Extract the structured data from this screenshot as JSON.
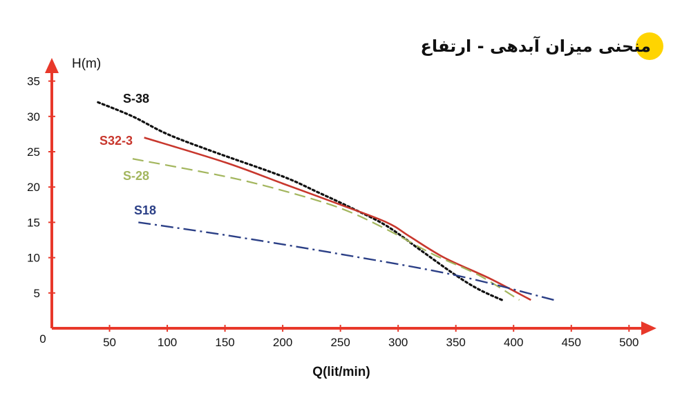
{
  "title": "منحنی میزان آبدهی - ارتفاع",
  "colors": {
    "axis": "#e8382a",
    "title_badge": "#ffd400"
  },
  "chart_data": {
    "type": "line",
    "title": "منحنی میزان آبدهی - ارتفاع",
    "xlabel": "Q(lit/min)",
    "ylabel": "H(m)",
    "xlim": [
      0,
      500
    ],
    "ylim": [
      0,
      35
    ],
    "origin_label": "0",
    "xticks": [
      50,
      100,
      150,
      200,
      250,
      300,
      350,
      400,
      450,
      500
    ],
    "yticks": [
      5,
      10,
      15,
      20,
      25,
      30,
      35
    ],
    "grid": false,
    "series": [
      {
        "name": "S-38",
        "color": "#111111",
        "dash": "dotted",
        "x": [
          40,
          70,
          100,
          140,
          200,
          230,
          260,
          290,
          320,
          350,
          370,
          390
        ],
        "y": [
          32,
          30,
          27.5,
          25,
          21.5,
          19.3,
          17,
          14.5,
          11,
          7.5,
          5.5,
          4
        ]
      },
      {
        "name": "S32-3",
        "color": "#c8372d",
        "dash": "solid",
        "x": [
          80,
          150,
          200,
          250,
          290,
          310,
          340,
          380,
          415
        ],
        "y": [
          27,
          23.5,
          20.5,
          17.5,
          15,
          13,
          10,
          7,
          4
        ]
      },
      {
        "name": "S-28",
        "color": "#a3b65e",
        "dash": "dashed",
        "x": [
          70,
          150,
          200,
          250,
          290,
          330,
          370,
          405
        ],
        "y": [
          24,
          21.5,
          19.5,
          17,
          14,
          10.5,
          7.5,
          4
        ]
      },
      {
        "name": "S18",
        "color": "#2b3f86",
        "dash": "dashdot",
        "x": [
          75,
          150,
          250,
          350,
          435
        ],
        "y": [
          15,
          13.2,
          10.5,
          7.5,
          4
        ]
      }
    ]
  }
}
